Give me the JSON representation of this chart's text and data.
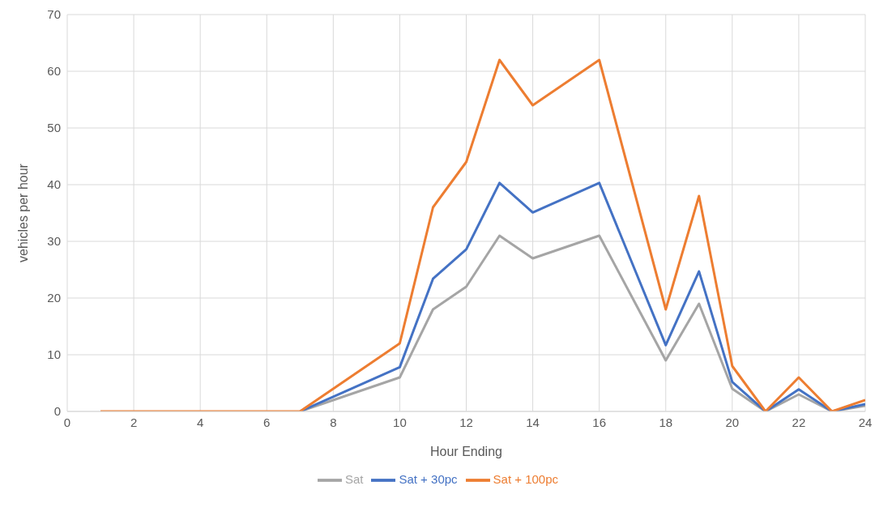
{
  "chart_data": {
    "type": "line",
    "xlabel": "Hour Ending",
    "ylabel": "vehicles per hour",
    "x": [
      1,
      2,
      3,
      4,
      5,
      6,
      7,
      8,
      9,
      10,
      11,
      12,
      13,
      14,
      15,
      16,
      17,
      18,
      19,
      20,
      21,
      22,
      23,
      24
    ],
    "series": [
      {
        "name": "Sat",
        "color": "#a5a5a5",
        "values": [
          null,
          null,
          null,
          null,
          null,
          null,
          0,
          2,
          4,
          6,
          18,
          22,
          31,
          27,
          29,
          31,
          20,
          9,
          19,
          4,
          0,
          3,
          0,
          1
        ]
      },
      {
        "name": "Sat + 30pc",
        "color": "#4472c4",
        "values": [
          null,
          null,
          null,
          null,
          null,
          null,
          0,
          2.6,
          5.2,
          7.8,
          23.4,
          28.6,
          40.3,
          35.1,
          37.7,
          40.3,
          26,
          11.7,
          24.7,
          5.2,
          0,
          3.9,
          0,
          1.3
        ]
      },
      {
        "name": "Sat + 100pc",
        "color": "#ed7d31",
        "values": [
          0,
          0,
          0,
          0,
          0,
          0,
          0,
          4,
          8,
          12,
          36,
          44,
          62,
          54,
          58,
          62,
          40,
          18,
          38,
          8,
          0,
          6,
          0,
          2
        ]
      }
    ],
    "xlim": [
      0,
      24
    ],
    "xticks": [
      0,
      2,
      4,
      6,
      8,
      10,
      12,
      14,
      16,
      18,
      20,
      22,
      24
    ],
    "ylim": [
      0,
      70
    ],
    "yticks": [
      0,
      10,
      20,
      30,
      40,
      50,
      60,
      70
    ],
    "grid": true,
    "legend": "bottom",
    "marker": "none",
    "line_style": "solid"
  }
}
